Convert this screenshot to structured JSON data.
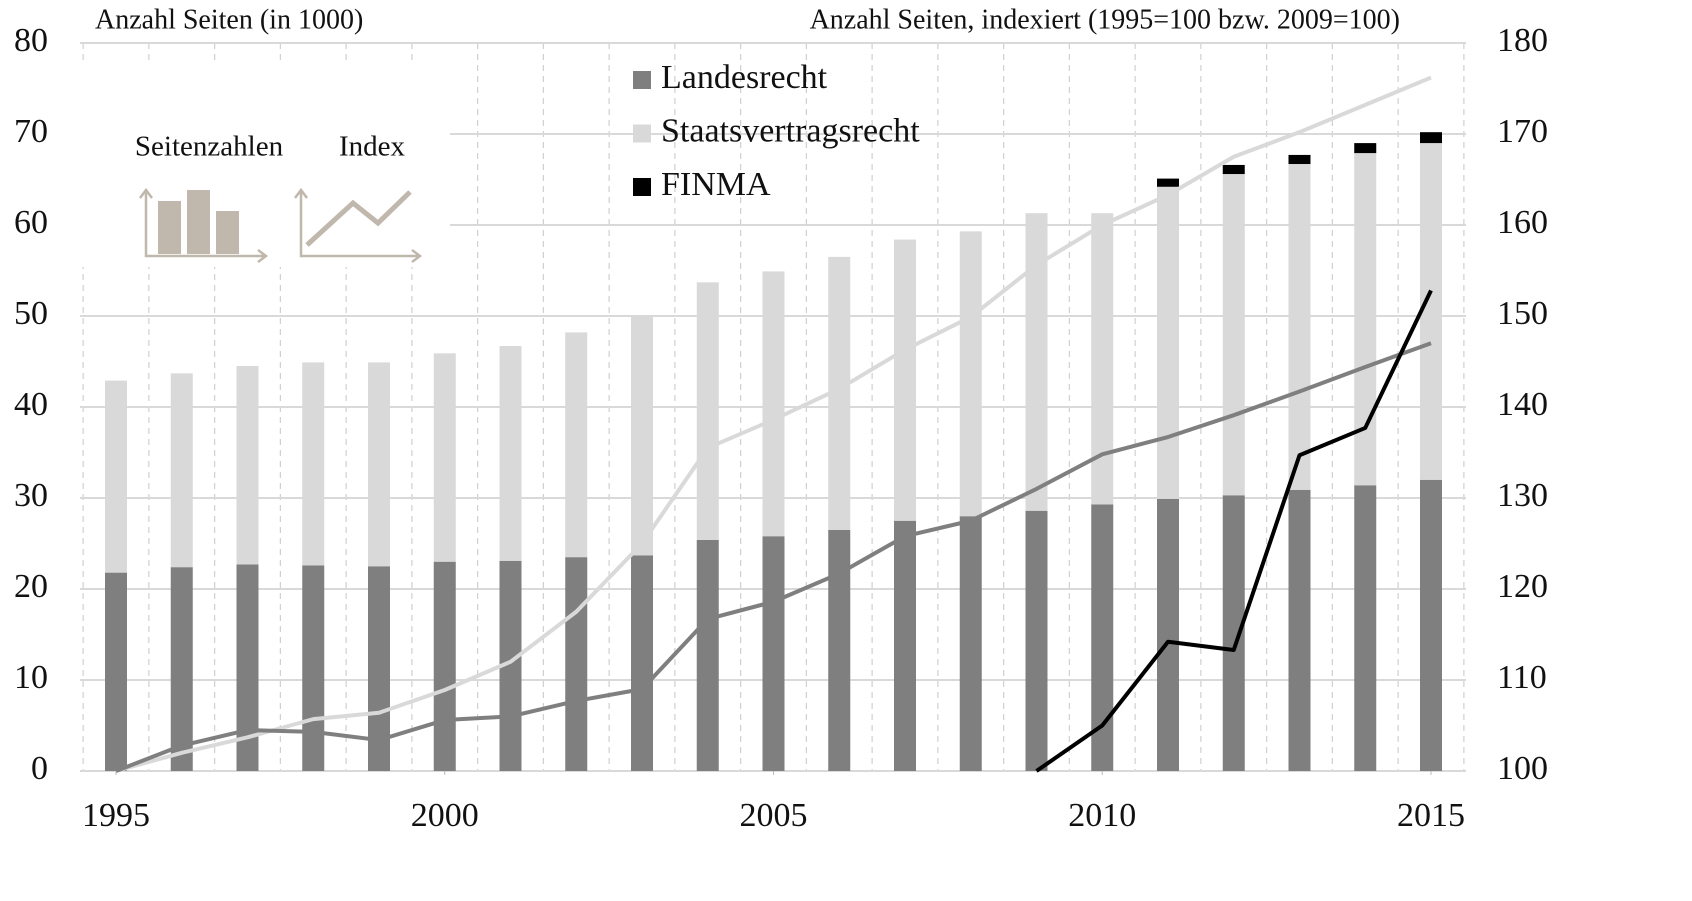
{
  "chart_data": {
    "type": "bar",
    "y_axis_title": "Anzahl Seiten (in 1000)",
    "y2_axis_title": "Anzahl Seiten, indexiert (1995=100 bzw. 2009=100)",
    "icon_labels": [
      "Seitenzahlen",
      "Index"
    ],
    "x": [
      1995,
      1996,
      1997,
      1998,
      1999,
      2000,
      2001,
      2002,
      2003,
      2004,
      2005,
      2006,
      2007,
      2008,
      2009,
      2010,
      2011,
      2012,
      2013,
      2014,
      2015
    ],
    "xlim": [
      1995,
      2015
    ],
    "xticks": [
      1995,
      2000,
      2005,
      2010,
      2015
    ],
    "ylim": [
      0,
      80
    ],
    "yticks": [
      0,
      10,
      20,
      30,
      40,
      50,
      60,
      70,
      80
    ],
    "y2lim": [
      100,
      180
    ],
    "y2ticks": [
      100,
      110,
      120,
      130,
      140,
      150,
      160,
      170,
      180
    ],
    "grid": true,
    "stacked": true,
    "series": [
      {
        "name": "Landesrecht",
        "color": "#7f7f7f",
        "values": [
          21.8,
          22.4,
          22.7,
          22.6,
          22.5,
          23.0,
          23.1,
          23.5,
          23.7,
          25.4,
          25.8,
          26.5,
          27.5,
          28.0,
          28.6,
          29.3,
          29.9,
          30.3,
          30.9,
          31.4,
          32.0
        ]
      },
      {
        "name": "Staatsvertragsrecht",
        "color": "#d9d9d9",
        "values": [
          21.1,
          21.3,
          21.8,
          22.3,
          22.4,
          22.9,
          23.6,
          24.7,
          26.3,
          28.3,
          29.1,
          30.0,
          30.9,
          31.3,
          32.7,
          32.0,
          34.3,
          35.3,
          35.8,
          36.5,
          37.0
        ]
      },
      {
        "name": "FINMA",
        "color": "#000000",
        "values": [
          null,
          null,
          null,
          null,
          null,
          null,
          null,
          null,
          null,
          null,
          null,
          null,
          null,
          null,
          null,
          null,
          0.9,
          1.0,
          1.0,
          1.1,
          1.2
        ]
      }
    ],
    "index_series": [
      {
        "color": "#d9d9d9",
        "axis": "y2",
        "values": [
          100,
          102,
          103.7,
          105.7,
          106.4,
          108.9,
          112,
          117.5,
          125,
          135.5,
          138.6,
          142,
          146.3,
          149.9,
          155.6,
          160,
          163.3,
          167.5,
          170.2,
          173.2,
          176.2
        ]
      },
      {
        "color": "#7f7f7f",
        "axis": "y2",
        "values": [
          100,
          102.8,
          104.5,
          104.3,
          103.4,
          105.6,
          106,
          107.7,
          109,
          116.7,
          118.6,
          121.7,
          125.8,
          127.5,
          131,
          134.8,
          136.7,
          139.1,
          141.7,
          144.4,
          147
        ]
      },
      {
        "color": "#000000",
        "axis": "y2",
        "values": [
          null,
          null,
          null,
          null,
          null,
          null,
          null,
          null,
          null,
          null,
          null,
          null,
          null,
          null,
          100,
          105,
          114.2,
          113.3,
          134.7,
          137.7,
          152.8
        ]
      }
    ]
  }
}
